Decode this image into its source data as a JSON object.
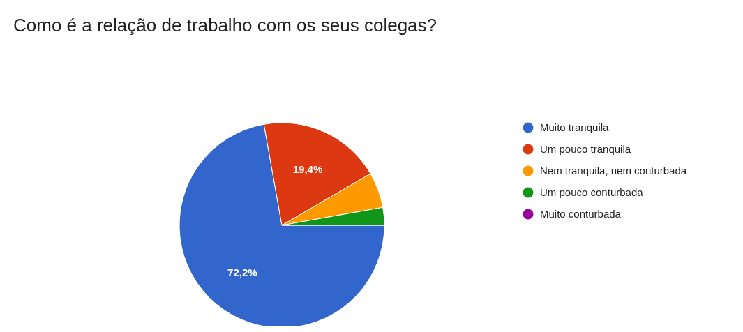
{
  "chart_data": {
    "type": "pie",
    "title": "Como é a relação de trabalho com os seus colegas?",
    "categories": [
      "Muito tranquila",
      "Um pouco tranquila",
      "Nem tranquila, nem conturbada",
      "Um pouco conturbada",
      "Muito conturbada"
    ],
    "values": [
      72.2,
      19.4,
      5.6,
      2.8,
      0
    ],
    "colors": [
      "#3366cc",
      "#dc3912",
      "#ff9900",
      "#109618",
      "#990099"
    ],
    "value_labels": [
      "72,2%",
      "19,4%",
      null,
      null,
      null
    ],
    "legend": "right"
  }
}
